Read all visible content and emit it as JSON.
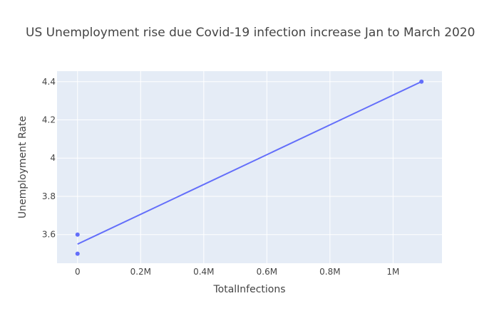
{
  "chart_data": {
    "type": "scatter",
    "title": "US Unemployment rise due Covid-19 infection increase Jan to March 2020",
    "xlabel": "TotalInfections",
    "ylabel": "Unemployment Rate",
    "xlim": [
      -65000,
      1155000
    ],
    "ylim": [
      3.45,
      4.455
    ],
    "x_ticks": [
      {
        "value": 0,
        "label": "0"
      },
      {
        "value": 200000,
        "label": "0.2M"
      },
      {
        "value": 400000,
        "label": "0.4M"
      },
      {
        "value": 600000,
        "label": "0.6M"
      },
      {
        "value": 800000,
        "label": "0.8M"
      },
      {
        "value": 1000000,
        "label": "1M"
      }
    ],
    "y_ticks": [
      {
        "value": 3.6,
        "label": "3.6"
      },
      {
        "value": 3.8,
        "label": "3.8"
      },
      {
        "value": 4.0,
        "label": "4"
      },
      {
        "value": 4.2,
        "label": "4.2"
      },
      {
        "value": 4.4,
        "label": "4.4"
      }
    ],
    "points": [
      {
        "x": 0,
        "y": 3.5
      },
      {
        "x": 0,
        "y": 3.6
      },
      {
        "x": 1090000,
        "y": 4.4
      }
    ],
    "trendline": {
      "x": [
        0,
        1090000
      ],
      "y": [
        3.55,
        4.4
      ]
    },
    "grid": true,
    "colors": {
      "plot_bg": "#E5ECF6",
      "grid": "#ffffff",
      "marker": "#636EFA",
      "text": "#444444",
      "title": "#444444"
    }
  }
}
